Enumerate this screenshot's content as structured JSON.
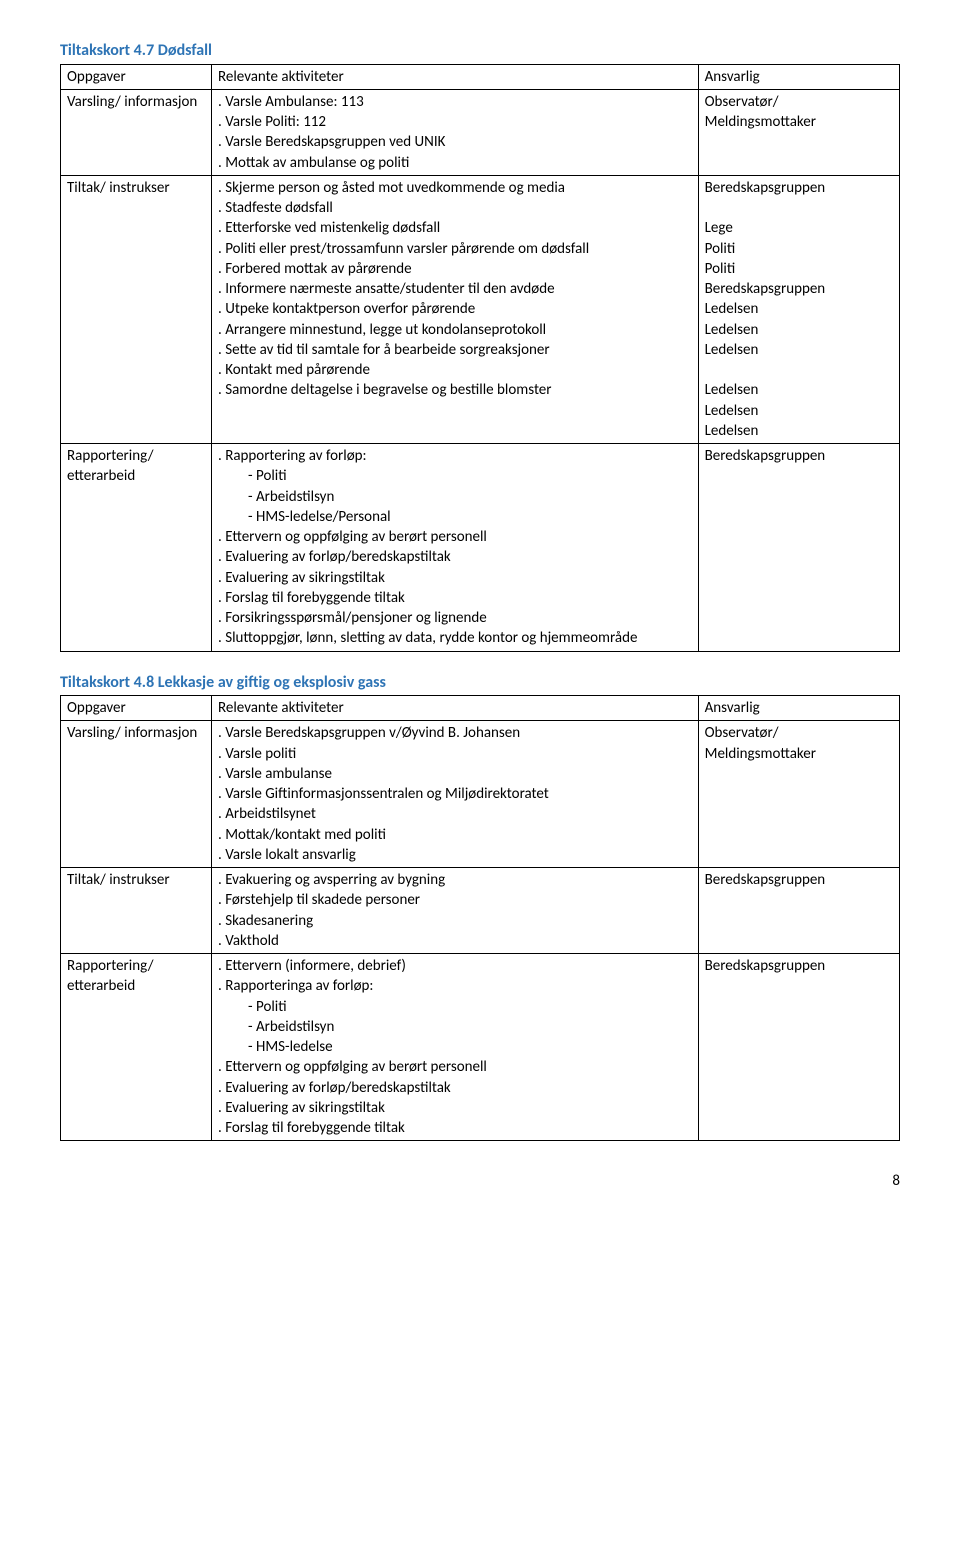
{
  "card1": {
    "title": "Tiltakskort 4.7 Dødsfall",
    "headers": [
      "Oppgaver",
      "Relevante aktiviteter",
      "Ansvarlig"
    ],
    "rows": [
      {
        "task": "Varsling/ informasjon",
        "activities": [
          ". Varsle Ambulanse: 113",
          ". Varsle Politi: 112",
          ". Varsle Beredskapsgruppen ved UNIK",
          ". Mottak av ambulanse og politi"
        ],
        "responsible": [
          "Observatør/",
          "Meldingsmottaker"
        ]
      },
      {
        "task": "Tiltak/ instrukser",
        "activities": [
          ". Skjerme person og åsted mot uvedkommende og media",
          ". Stadfeste dødsfall",
          ". Etterforske ved mistenkelig dødsfall",
          ". Politi eller prest/trossamfunn varsler pårørende om dødsfall",
          ". Forbered mottak av pårørende",
          ". Informere nærmeste ansatte/studenter til den avdøde",
          ". Utpeke kontaktperson overfor pårørende",
          ". Arrangere minnestund, legge ut kondolanseprotokoll",
          ". Sette av tid til samtale for å bearbeide sorgreaksjoner",
          ". Kontakt med pårørende",
          ". Samordne deltagelse i begravelse og bestille blomster"
        ],
        "responsible": [
          "Beredskapsgruppen",
          "",
          "Lege",
          "Politi",
          "Politi",
          "Beredskapsgruppen",
          "Ledelsen",
          "Ledelsen",
          "Ledelsen",
          "",
          "Ledelsen",
          "Ledelsen",
          "Ledelsen"
        ]
      },
      {
        "task": "Rapportering/ etterarbeid",
        "activities": [
          ". Rapportering av forløp:",
          "-   Politi",
          "-   Arbeidstilsyn",
          "-   HMS-ledelse/Personal",
          ". Ettervern og oppfølging av berørt personell",
          ". Evaluering av forløp/beredskapstiltak",
          ". Evaluering av sikringstiltak",
          ". Forslag til forebyggende tiltak",
          ". Forsikringsspørsmål/pensjoner og lignende",
          ". Sluttoppgjør, lønn, sletting av data, rydde kontor og hjemmeområde"
        ],
        "responsible": [
          "Beredskapsgruppen"
        ]
      }
    ]
  },
  "card2": {
    "title": "Tiltakskort 4.8 Lekkasje av giftig og eksplosiv gass",
    "headers": [
      "Oppgaver",
      "Relevante aktiviteter",
      "Ansvarlig"
    ],
    "rows": [
      {
        "task": "Varsling/ informasjon",
        "activities": [
          ". Varsle Beredskapsgruppen v/Øyvind B. Johansen",
          ". Varsle politi",
          ". Varsle ambulanse",
          ". Varsle Giftinformasjonssentralen og Miljødirektoratet",
          ". Arbeidstilsynet",
          ". Mottak/kontakt med politi",
          ". Varsle lokalt ansvarlig"
        ],
        "responsible": [
          "Observatør/",
          "Meldingsmottaker"
        ]
      },
      {
        "task": "Tiltak/ instrukser",
        "activities": [
          ". Evakuering og avsperring av bygning",
          ". Førstehjelp til skadede personer",
          ". Skadesanering",
          ". Vakthold"
        ],
        "responsible": [
          "Beredskapsgruppen"
        ]
      },
      {
        "task": "Rapportering/ etterarbeid",
        "activities": [
          ". Ettervern (informere, debrief)",
          ". Rapporteringa av forløp:",
          "-   Politi",
          "-   Arbeidstilsyn",
          "-   HMS-ledelse",
          ". Ettervern og oppfølging av berørt personell",
          ". Evaluering av forløp/beredskapstiltak",
          ". Evaluering av sikringstiltak",
          ". Forslag til forebyggende tiltak"
        ],
        "responsible": [
          "Beredskapsgruppen"
        ]
      }
    ]
  },
  "page_number": "8"
}
